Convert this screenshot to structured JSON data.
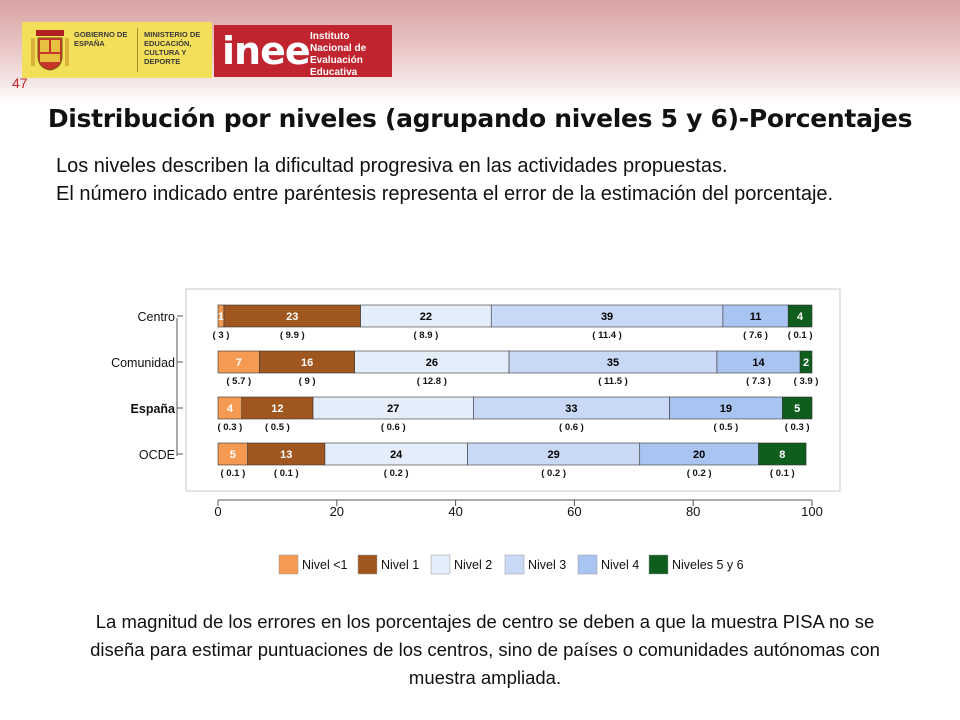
{
  "slide_number": "47",
  "header": {
    "gov_logo_text": "GOBIERNO DE ESPAÑA",
    "ministry_text": "MINISTERIO DE EDUCACIÓN, CULTURA Y DEPORTE",
    "inee_logo": "inee",
    "inee_text": "Instituto Nacional de Evaluación Educativa",
    "gov_color": "#f3df5a",
    "inee_color": "#c0242e"
  },
  "title": "Distribución por niveles (agrupando niveles 5 y 6)-Porcentajes",
  "intro": {
    "line1": "Los niveles describen la dificultad progresiva en las actividades propuestas.",
    "line2": "El número indicado entre paréntesis representa el error de la estimación del porcentaje."
  },
  "chart_data": {
    "type": "bar",
    "orientation": "horizontal",
    "stacked": true,
    "categories": [
      "Centro",
      "Comunidad",
      "España",
      "OCDE"
    ],
    "bold_category": "España",
    "xlim": [
      0,
      100
    ],
    "x_ticks": [
      "0",
      "20",
      "40",
      "60",
      "80",
      "100"
    ],
    "grid": false,
    "legend_position": "bottom",
    "series": [
      {
        "name": "Nivel <1",
        "color": "#f59a52",
        "text_color": "#ffffff",
        "values": [
          1,
          7,
          4,
          5
        ],
        "labels": [
          "1",
          "7",
          "4",
          "5"
        ],
        "errors": [
          "( 3 )",
          "( 5.7 )",
          "( 0.3 )",
          "( 0.1 )"
        ]
      },
      {
        "name": "Nivel 1",
        "color": "#a0561f",
        "text_color": "#ffffff",
        "values": [
          23,
          16,
          12,
          13
        ],
        "labels": [
          "23",
          "16",
          "12",
          "13"
        ],
        "errors": [
          "( 9.9 )",
          "( 9 )",
          "( 0.5 )",
          "( 0.1 )"
        ]
      },
      {
        "name": "Nivel 2",
        "color": "#e4edfa",
        "text_color": "#000000",
        "values": [
          22,
          26,
          27,
          24
        ],
        "labels": [
          "22",
          "26",
          "27",
          "24"
        ],
        "errors": [
          "( 8.9 )",
          "( 12.8 )",
          "( 0.6 )",
          "( 0.2 )"
        ]
      },
      {
        "name": "Nivel 3",
        "color": "#c9d9f5",
        "text_color": "#000000",
        "values": [
          39,
          35,
          33,
          29
        ],
        "labels": [
          "39",
          "35",
          "33",
          "29"
        ],
        "errors": [
          "( 11.4 )",
          "( 11.5 )",
          "( 0.6 )",
          "( 0.2 )"
        ]
      },
      {
        "name": "Nivel 4",
        "color": "#aac4f2",
        "text_color": "#000000",
        "values": [
          11,
          14,
          19,
          20
        ],
        "labels": [
          "11",
          "14",
          "19",
          "20"
        ],
        "errors": [
          "( 7.6 )",
          "( 7.3 )",
          "( 0.5 )",
          "( 0.2 )"
        ]
      },
      {
        "name": "Niveles 5 y 6",
        "color": "#0f5e1e",
        "text_color": "#ffffff",
        "values": [
          4,
          2,
          5,
          8
        ],
        "labels": [
          "4",
          "2",
          "5",
          "8"
        ],
        "errors": [
          "( 0.1 )",
          "( 3.9 )",
          "( 0.3 )",
          "( 0.1 )"
        ]
      }
    ]
  },
  "footer": "La magnitud de los errores en los porcentajes de centro se deben a que la muestra PISA no se diseña para estimar puntuaciones de los centros, sino de países o comunidades autónomas con muestra ampliada."
}
